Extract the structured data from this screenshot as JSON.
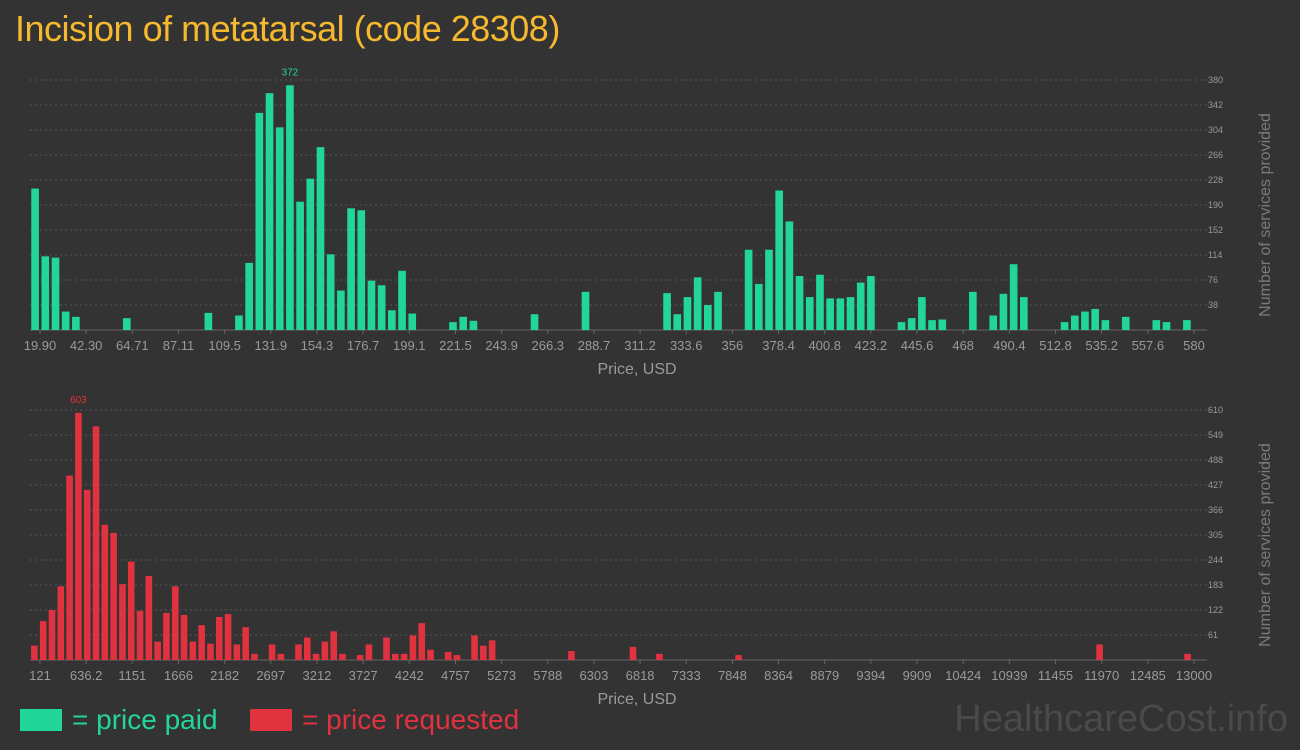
{
  "title": "Incision of metatarsal (code 28308)",
  "colors": {
    "paid": "#22D69A",
    "requested": "#E0323F",
    "title": "#F5B82E",
    "background": "#333333",
    "axis_text": "#9A9A9A",
    "grid": "#555555"
  },
  "legend": {
    "paid_label": "= price paid",
    "requested_label": "= price requested"
  },
  "watermark": "HealthcareCost.info",
  "chart_data": [
    {
      "type": "bar",
      "series_name": "price paid",
      "xlabel": "Price, USD",
      "ylabel": "Number of services provided",
      "x_tick_labels": [
        "19.90",
        "42.30",
        "64.71",
        "87.11",
        "109.5",
        "131.9",
        "154.3",
        "176.7",
        "199.1",
        "221.5",
        "243.9",
        "266.3",
        "288.7",
        "311.2",
        "333.6",
        "356",
        "378.4",
        "400.8",
        "423.2",
        "445.6",
        "468",
        "490.4",
        "512.8",
        "535.2",
        "557.6",
        "580"
      ],
      "y_ticks": [
        38,
        76,
        114,
        152,
        190,
        228,
        266,
        304,
        342,
        380
      ],
      "ylim": [
        0,
        380
      ],
      "max_label": "372",
      "values": [
        215,
        112,
        110,
        28,
        20,
        0,
        0,
        0,
        0,
        18,
        0,
        0,
        0,
        0,
        0,
        0,
        0,
        26,
        0,
        0,
        22,
        102,
        330,
        360,
        308,
        372,
        195,
        230,
        278,
        115,
        60,
        185,
        182,
        75,
        68,
        30,
        90,
        25,
        0,
        0,
        0,
        12,
        20,
        14,
        0,
        0,
        0,
        0,
        0,
        24,
        0,
        0,
        0,
        0,
        58,
        0,
        0,
        0,
        0,
        0,
        0,
        0,
        56,
        24,
        50,
        80,
        38,
        58,
        0,
        0,
        122,
        70,
        122,
        212,
        165,
        82,
        50,
        84,
        48,
        48,
        50,
        72,
        82,
        0,
        0,
        12,
        18,
        50,
        15,
        16,
        0,
        0,
        58,
        0,
        22,
        55,
        100,
        50,
        0,
        0,
        0,
        12,
        22,
        28,
        32,
        15,
        0,
        20,
        0,
        0,
        15,
        12,
        0,
        15
      ]
    },
    {
      "type": "bar",
      "series_name": "price requested",
      "xlabel": "Price, USD",
      "ylabel": "Number of services provided",
      "x_tick_labels": [
        "121",
        "636.2",
        "1151",
        "1666",
        "2182",
        "2697",
        "3212",
        "3727",
        "4242",
        "4757",
        "5273",
        "5788",
        "6303",
        "6818",
        "7333",
        "7848",
        "8364",
        "8879",
        "9394",
        "9909",
        "10424",
        "10939",
        "11455",
        "11970",
        "12485",
        "13000"
      ],
      "y_ticks": [
        61,
        122,
        183,
        244,
        305,
        366,
        427,
        488,
        549,
        610
      ],
      "ylim": [
        0,
        610
      ],
      "max_label": "603",
      "values": [
        35,
        95,
        122,
        180,
        450,
        603,
        415,
        570,
        330,
        310,
        185,
        240,
        120,
        205,
        45,
        115,
        180,
        110,
        45,
        85,
        40,
        105,
        112,
        38,
        80,
        15,
        0,
        38,
        15,
        0,
        38,
        55,
        15,
        45,
        70,
        15,
        0,
        12,
        38,
        0,
        55,
        15,
        15,
        60,
        90,
        25,
        0,
        20,
        12,
        0,
        60,
        35,
        48,
        0,
        0,
        0,
        0,
        0,
        0,
        0,
        0,
        22,
        0,
        0,
        0,
        0,
        0,
        0,
        32,
        0,
        0,
        15,
        0,
        0,
        0,
        0,
        0,
        0,
        0,
        0,
        12,
        0,
        0,
        0,
        0,
        0,
        0,
        0,
        0,
        0,
        0,
        0,
        0,
        0,
        0,
        0,
        0,
        0,
        0,
        0,
        0,
        0,
        0,
        0,
        0,
        0,
        0,
        0,
        0,
        0,
        0,
        0,
        0,
        0,
        0,
        0,
        0,
        0,
        0,
        0,
        0,
        38,
        0,
        0,
        0,
        0,
        0,
        0,
        0,
        0,
        0,
        15
      ]
    }
  ]
}
